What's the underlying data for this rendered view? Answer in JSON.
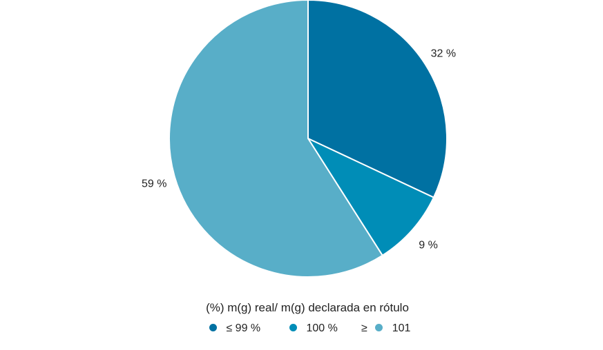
{
  "chart_data": {
    "type": "pie",
    "categories": [
      "≤ 99 %",
      "100 %",
      "101"
    ],
    "values": [
      32,
      9,
      59
    ],
    "value_labels": [
      "32 %",
      "9 %",
      "59 %"
    ],
    "colors": [
      "#0071a2",
      "#008db7",
      "#58aec8"
    ],
    "start_angle_deg": 0,
    "direction": "clockwise",
    "legend": {
      "title": "(%) m(g) real/ m(g) declarada en rótulo",
      "placement": "bottom",
      "entries": [
        {
          "prefix": "",
          "label": "≤ 99 %",
          "color": "#0071a2"
        },
        {
          "prefix": "",
          "label": "100 %",
          "color": "#008db7"
        },
        {
          "prefix": "≥",
          "label": "101",
          "color": "#58aec8"
        }
      ]
    }
  }
}
